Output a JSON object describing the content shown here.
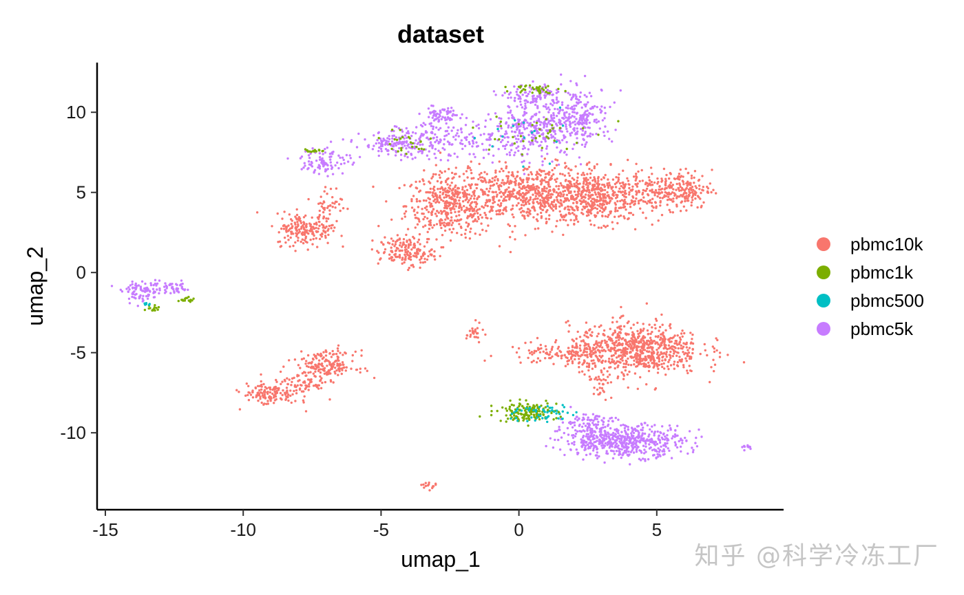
{
  "chart_data": {
    "type": "scatter",
    "title": "dataset",
    "xlabel": "umap_1",
    "ylabel": "umap_2",
    "xlim": [
      -15.3,
      9.6
    ],
    "ylim": [
      -14.8,
      13.1
    ],
    "x_ticks": [
      -15,
      -10,
      -5,
      0,
      5
    ],
    "y_ticks": [
      -10,
      -5,
      0,
      5,
      10
    ],
    "x_tick_labels": [
      "-15",
      "-10",
      "-5",
      "0",
      "5"
    ],
    "y_tick_labels": [
      "-10",
      "-5",
      "0",
      "5",
      "10"
    ],
    "legend_position": "right",
    "grid": false,
    "series": [
      {
        "name": "pbmc10k",
        "color": "#F8766D"
      },
      {
        "name": "pbmc1k",
        "color": "#7CAE00"
      },
      {
        "name": "pbmc500",
        "color": "#00BFC4"
      },
      {
        "name": "pbmc5k",
        "color": "#C77CFF"
      }
    ],
    "clusters": [
      {
        "series": "pbmc10k",
        "cx": -2.5,
        "cy": 4.2,
        "sx": 0.8,
        "sy": 1.0,
        "n": 420
      },
      {
        "series": "pbmc10k",
        "cx": 0.5,
        "cy": 4.9,
        "sx": 1.4,
        "sy": 0.9,
        "n": 650
      },
      {
        "series": "pbmc10k",
        "cx": 3.0,
        "cy": 4.7,
        "sx": 1.1,
        "sy": 0.8,
        "n": 480
      },
      {
        "series": "pbmc10k",
        "cx": 5.8,
        "cy": 5.2,
        "sx": 0.6,
        "sy": 0.6,
        "n": 200
      },
      {
        "series": "pbmc10k",
        "cx": -7.8,
        "cy": 2.7,
        "sx": 0.5,
        "sy": 0.5,
        "n": 170
      },
      {
        "series": "pbmc10k",
        "cx": -7.0,
        "cy": 4.0,
        "sx": 0.3,
        "sy": 0.8,
        "n": 60
      },
      {
        "series": "pbmc10k",
        "cx": -4.1,
        "cy": 1.3,
        "sx": 0.5,
        "sy": 0.45,
        "n": 160
      },
      {
        "series": "pbmc10k",
        "cx": 4.2,
        "cy": -4.8,
        "sx": 1.2,
        "sy": 0.8,
        "n": 750
      },
      {
        "series": "pbmc10k",
        "cx": 1.5,
        "cy": -5.1,
        "sx": 1.0,
        "sy": 0.35,
        "n": 110
      },
      {
        "series": "pbmc10k",
        "cx": 3.0,
        "cy": -6.8,
        "sx": 0.2,
        "sy": 0.5,
        "n": 30
      },
      {
        "series": "pbmc10k",
        "cx": -7.0,
        "cy": -5.8,
        "sx": 0.55,
        "sy": 0.45,
        "n": 180
      },
      {
        "series": "pbmc10k",
        "cx": -9.0,
        "cy": -7.6,
        "sx": 0.5,
        "sy": 0.35,
        "n": 120
      },
      {
        "series": "pbmc10k",
        "cx": -8.0,
        "cy": -7.0,
        "sx": 0.6,
        "sy": 0.4,
        "n": 70
      },
      {
        "series": "pbmc10k",
        "cx": -1.6,
        "cy": -3.8,
        "sx": 0.15,
        "sy": 0.3,
        "n": 25
      },
      {
        "series": "pbmc10k",
        "cx": -3.3,
        "cy": -13.3,
        "sx": 0.15,
        "sy": 0.12,
        "n": 15
      },
      {
        "series": "pbmc5k",
        "cx": 3.8,
        "cy": -10.5,
        "sx": 1.1,
        "sy": 0.5,
        "n": 550
      },
      {
        "series": "pbmc5k",
        "cx": 2.5,
        "cy": -9.3,
        "sx": 0.5,
        "sy": 0.3,
        "n": 70
      },
      {
        "series": "pbmc5k",
        "cx": 0.5,
        "cy": 8.8,
        "sx": 0.9,
        "sy": 0.8,
        "n": 300
      },
      {
        "series": "pbmc5k",
        "cx": 2.2,
        "cy": 9.8,
        "sx": 0.6,
        "sy": 0.9,
        "n": 200
      },
      {
        "series": "pbmc5k",
        "cx": 0.6,
        "cy": 11.0,
        "sx": 0.5,
        "sy": 0.35,
        "n": 100
      },
      {
        "series": "pbmc5k",
        "cx": -4.3,
        "cy": 8.0,
        "sx": 0.7,
        "sy": 0.4,
        "n": 160
      },
      {
        "series": "pbmc5k",
        "cx": -2.8,
        "cy": 9.8,
        "sx": 0.35,
        "sy": 0.35,
        "n": 70
      },
      {
        "series": "pbmc5k",
        "cx": -2.2,
        "cy": 8.2,
        "sx": 1.0,
        "sy": 0.6,
        "n": 130
      },
      {
        "series": "pbmc5k",
        "cx": -7.0,
        "cy": 7.0,
        "sx": 0.45,
        "sy": 0.45,
        "n": 90
      },
      {
        "series": "pbmc5k",
        "cx": -13.7,
        "cy": -1.2,
        "sx": 0.35,
        "sy": 0.3,
        "n": 80
      },
      {
        "series": "pbmc5k",
        "cx": -12.6,
        "cy": -1.0,
        "sx": 0.4,
        "sy": 0.2,
        "n": 50
      },
      {
        "series": "pbmc5k",
        "cx": 8.3,
        "cy": -10.9,
        "sx": 0.15,
        "sy": 0.08,
        "n": 10
      },
      {
        "series": "pbmc1k",
        "cx": 0.3,
        "cy": -8.7,
        "sx": 0.55,
        "sy": 0.3,
        "n": 150
      },
      {
        "series": "pbmc1k",
        "cx": 0.6,
        "cy": 11.5,
        "sx": 0.4,
        "sy": 0.15,
        "n": 35
      },
      {
        "series": "pbmc1k",
        "cx": -7.5,
        "cy": 7.6,
        "sx": 0.15,
        "sy": 0.1,
        "n": 15
      },
      {
        "series": "pbmc1k",
        "cx": -13.3,
        "cy": -2.2,
        "sx": 0.15,
        "sy": 0.1,
        "n": 15
      },
      {
        "series": "pbmc1k",
        "cx": -12.1,
        "cy": -1.7,
        "sx": 0.2,
        "sy": 0.12,
        "n": 15
      },
      {
        "series": "pbmc1k",
        "cx": 0.3,
        "cy": 8.6,
        "sx": 1.0,
        "sy": 0.7,
        "n": 35
      },
      {
        "series": "pbmc1k",
        "cx": -4.2,
        "cy": 8.0,
        "sx": 0.6,
        "sy": 0.4,
        "n": 25
      },
      {
        "series": "pbmc500",
        "cx": 0.8,
        "cy": -8.8,
        "sx": 0.6,
        "sy": 0.3,
        "n": 50
      },
      {
        "series": "pbmc500",
        "cx": 0.5,
        "cy": 8.8,
        "sx": 1.0,
        "sy": 0.8,
        "n": 15
      },
      {
        "series": "pbmc500",
        "cx": -13.4,
        "cy": -2.0,
        "sx": 0.1,
        "sy": 0.08,
        "n": 6
      }
    ]
  },
  "watermark": "知乎 @科学冷冻工厂"
}
